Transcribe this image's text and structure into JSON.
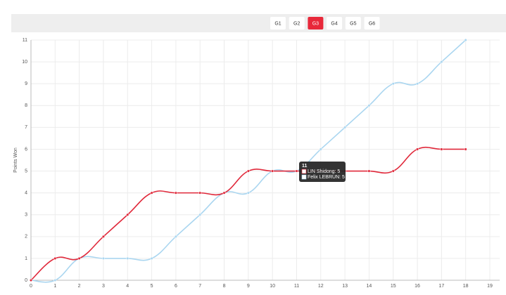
{
  "tabs": {
    "items": [
      "G1",
      "G2",
      "G3",
      "G4",
      "G5",
      "G6"
    ],
    "active": 2
  },
  "chart_data": {
    "type": "line",
    "ylabel": "Points Won",
    "x": [
      0,
      1,
      2,
      3,
      4,
      5,
      6,
      7,
      8,
      9,
      10,
      11,
      12,
      13,
      14,
      15,
      16,
      17,
      18
    ],
    "series": [
      {
        "name": "LIN Shidong",
        "color": "#e0283a",
        "values": [
          0,
          1,
          1,
          2,
          3,
          4,
          4,
          4,
          4,
          5,
          5,
          5,
          5,
          5,
          5,
          5,
          6,
          6,
          6
        ]
      },
      {
        "name": "Felix LEBRUN",
        "color": "#aad6f0",
        "values": [
          0,
          0,
          1,
          1,
          1,
          1,
          2,
          3,
          4,
          4,
          5,
          5,
          6,
          7,
          8,
          9,
          9,
          10,
          11
        ]
      }
    ],
    "xlim": [
      0,
      19
    ],
    "xticks": [
      0,
      1,
      2,
      3,
      4,
      5,
      6,
      7,
      8,
      9,
      10,
      11,
      12,
      13,
      14,
      15,
      16,
      17,
      18,
      19
    ],
    "ylim": [
      0,
      11
    ],
    "yticks": [
      0,
      1,
      2,
      3,
      4,
      5,
      6,
      7,
      8,
      9,
      10,
      11
    ],
    "grid": true,
    "tooltip": {
      "title": "11",
      "lines": [
        "LIN Shidong: 5",
        "Felix LEBRUN: 5"
      ]
    }
  }
}
